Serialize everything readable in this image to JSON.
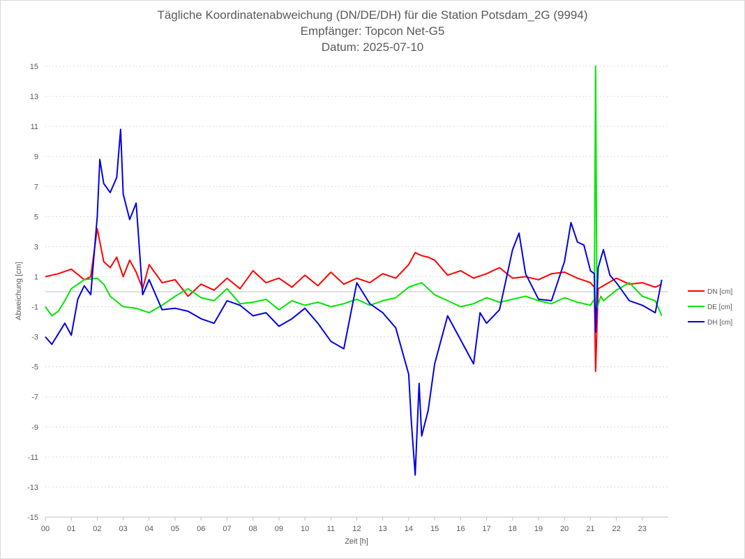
{
  "chart_data": {
    "type": "line",
    "title": "Tägliche Koordinatenabweichung (DN/DE/DH) für die Station Potsdam_2G (9994)",
    "subtitle": "Empfänger: Topcon Net-G5",
    "subtitle2": "Datum: 2025-07-10",
    "xlabel": "Zeit [h]",
    "ylabel": "Abweichung [cm]",
    "ylim": [
      -15,
      15
    ],
    "xlim": [
      0,
      24
    ],
    "grid": "horizontal-dotted",
    "legend_position": "right",
    "x_ticks": [
      "00",
      "01",
      "02",
      "03",
      "04",
      "05",
      "06",
      "07",
      "08",
      "09",
      "10",
      "11",
      "12",
      "13",
      "14",
      "15",
      "16",
      "17",
      "18",
      "19",
      "20",
      "21",
      "22",
      "23"
    ],
    "y_ticks": [
      15,
      13,
      11,
      9,
      7,
      5,
      3,
      1,
      -1,
      -3,
      -5,
      -7,
      -9,
      -11,
      -13,
      -15
    ],
    "series": [
      {
        "name": "DN [cm]",
        "color": "#ff0000",
        "x": [
          0,
          0.5,
          1,
          1.5,
          1.75,
          2,
          2.25,
          2.5,
          2.75,
          3,
          3.25,
          3.5,
          3.75,
          4,
          4.5,
          5,
          5.5,
          6,
          6.5,
          7,
          7.5,
          8,
          8.5,
          9,
          9.5,
          10,
          10.5,
          11,
          11.5,
          12,
          12.5,
          13,
          13.5,
          14,
          14.25,
          14.5,
          14.75,
          15,
          15.5,
          16,
          16.5,
          17,
          17.5,
          18,
          18.5,
          19,
          19.5,
          20,
          20.5,
          21,
          21.15,
          21.2,
          21.3,
          21.5,
          22,
          22.5,
          23,
          23.5,
          23.75
        ],
        "values": [
          1,
          1.2,
          1.5,
          0.8,
          1,
          4.2,
          2,
          1.6,
          2.3,
          1,
          2.1,
          1.3,
          0.2,
          1.8,
          0.6,
          0.8,
          -0.3,
          0.5,
          0.1,
          0.9,
          0.2,
          1.4,
          0.6,
          0.9,
          0.3,
          1.1,
          0.4,
          1.3,
          0.5,
          0.9,
          0.6,
          1.2,
          0.9,
          1.8,
          2.6,
          2.4,
          2.3,
          2.1,
          1.1,
          1.4,
          0.9,
          1.2,
          1.6,
          0.9,
          1,
          0.8,
          1.2,
          1.3,
          0.9,
          0.6,
          0.3,
          -5.3,
          0.2,
          0.4,
          0.9,
          0.5,
          0.6,
          0.3,
          0.5
        ]
      },
      {
        "name": "DE [cm]",
        "color": "#00e600",
        "x": [
          0,
          0.25,
          0.5,
          0.75,
          1,
          1.5,
          2,
          2.25,
          2.5,
          3,
          3.5,
          4,
          4.5,
          5,
          5.5,
          6,
          6.5,
          7,
          7.5,
          8,
          8.5,
          9,
          9.5,
          10,
          10.5,
          11,
          11.5,
          12,
          12.5,
          13,
          13.5,
          14,
          14.5,
          15,
          15.5,
          16,
          16.5,
          17,
          17.5,
          18,
          18.5,
          19,
          19.5,
          20,
          20.5,
          21,
          21.15,
          21.2,
          21.25,
          21.4,
          21.5,
          22,
          22.5,
          23,
          23.5,
          23.75
        ],
        "values": [
          -1,
          -1.6,
          -1.3,
          -0.6,
          0.2,
          0.8,
          0.9,
          0.5,
          -0.3,
          -1,
          -1.1,
          -1.4,
          -0.9,
          -0.3,
          0.2,
          -0.4,
          -0.6,
          0.2,
          -0.8,
          -0.7,
          -0.5,
          -1.2,
          -0.6,
          -0.9,
          -0.7,
          -1,
          -0.8,
          -0.5,
          -0.9,
          -0.6,
          -0.4,
          0.3,
          0.6,
          -0.2,
          -0.6,
          -1,
          -0.8,
          -0.4,
          -0.7,
          -0.5,
          -0.3,
          -0.6,
          -0.8,
          -0.4,
          -0.7,
          -0.9,
          -0.5,
          15,
          -1.1,
          -0.3,
          -0.6,
          0.1,
          0.6,
          -0.3,
          -0.6,
          -1.6
        ]
      },
      {
        "name": "DH [cm]",
        "color": "#0000e6",
        "x": [
          0,
          0.25,
          0.5,
          0.75,
          1,
          1.25,
          1.5,
          1.75,
          2,
          2.1,
          2.25,
          2.5,
          2.75,
          2.9,
          3,
          3.25,
          3.5,
          3.75,
          4,
          4.5,
          5,
          5.5,
          6,
          6.5,
          7,
          7.5,
          8,
          8.5,
          9,
          9.5,
          10,
          10.5,
          11,
          11.5,
          12,
          12.5,
          13,
          13.5,
          14,
          14.1,
          14.25,
          14.4,
          14.5,
          14.75,
          15,
          15.5,
          16,
          16.5,
          16.75,
          17,
          17.5,
          18,
          18.25,
          18.5,
          19,
          19.5,
          20,
          20.25,
          20.5,
          20.75,
          21,
          21.15,
          21.2,
          21.3,
          21.5,
          21.75,
          22,
          22.5,
          23,
          23.5,
          23.75
        ],
        "values": [
          -3,
          -3.5,
          -2.8,
          -2.1,
          -2.9,
          -0.5,
          0.4,
          -0.2,
          5,
          8.8,
          7.2,
          6.6,
          7.6,
          10.8,
          6.5,
          4.8,
          5.9,
          -0.2,
          0.8,
          -1.2,
          -1.1,
          -1.3,
          -1.8,
          -2.1,
          -0.6,
          -0.9,
          -1.6,
          -1.4,
          -2.3,
          -1.8,
          -1.1,
          -2.1,
          -3.3,
          -3.8,
          0.6,
          -0.8,
          -1.4,
          -2.4,
          -5.5,
          -8.6,
          -12.2,
          -6.1,
          -9.6,
          -7.9,
          -4.8,
          -1.6,
          -3.2,
          -4.8,
          -1.4,
          -2.1,
          -1.2,
          2.8,
          3.9,
          1.2,
          -0.5,
          -0.6,
          2,
          4.6,
          3.3,
          3.1,
          1.4,
          1.2,
          -2.7,
          1.6,
          2.8,
          1.1,
          0.6,
          -0.6,
          -0.9,
          -1.4,
          0.8
        ]
      }
    ]
  }
}
